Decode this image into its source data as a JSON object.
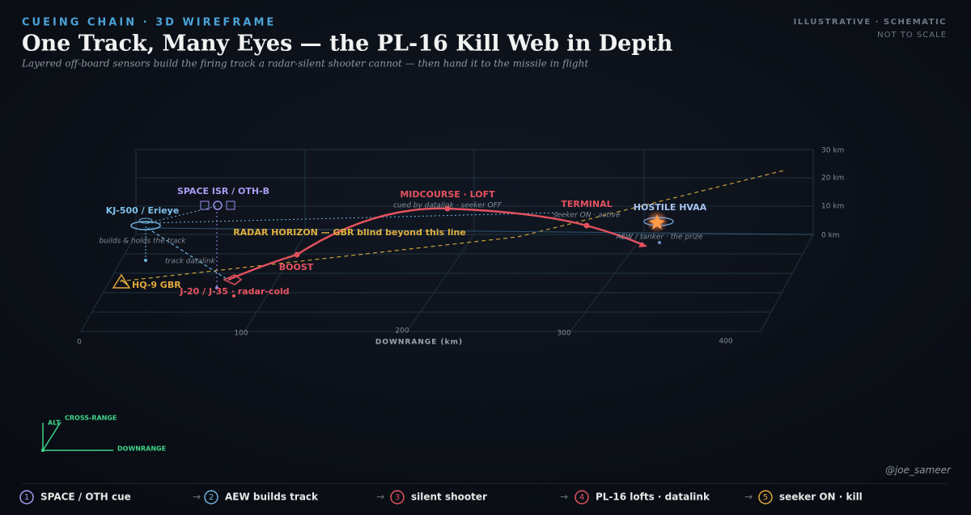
{
  "header": {
    "kicker": "CUEING CHAIN · 3D WIREFRAME",
    "title": "One Track, Many Eyes — the PL-16 Kill Web in Depth",
    "subtitle": "Layered off-board sensors build the firing track a radar-silent shooter cannot — then hand it to the missile in flight",
    "badge": "ILLUSTRATIVE · SCHEMATIC",
    "badge_note": "NOT TO SCALE"
  },
  "axes": {
    "downrange_label": "DOWNRANGE (km)",
    "downrange_ticks": [
      "0",
      "100",
      "200",
      "300",
      "400"
    ],
    "altitude_ticks": [
      "30 km",
      "20 km",
      "10 km",
      "0 km"
    ]
  },
  "nodes": {
    "space": {
      "label": "SPACE ISR / OTH-B"
    },
    "aew": {
      "label": "KJ-500 / Erieye",
      "note": "builds & holds the track",
      "link": "track datalink"
    },
    "midcourse": {
      "label": "MIDCOURSE · LOFT",
      "note": "cued by datalink · seeker OFF"
    },
    "terminal": {
      "label": "TERMINAL",
      "note": "seeker ON · active"
    },
    "target": {
      "label": "HOSTILE HVAA",
      "note": "AEW / tanker · the prize"
    },
    "horizon": {
      "label": "RADAR HORIZON — GBR blind beyond this line"
    },
    "boost": {
      "label": "BOOST"
    },
    "gbr": {
      "label": "HQ-9 GBR"
    },
    "shooter": {
      "label": "J-20 / J-35 · radar-cold"
    }
  },
  "compass": {
    "alt": "ALT",
    "cross": "CROSS-RANGE",
    "down": "DOWNRANGE"
  },
  "credit": "@joe_sameer",
  "steps": [
    {
      "number": "1",
      "label": "SPACE / OTH cue"
    },
    {
      "number": "2",
      "label": "AEW builds track"
    },
    {
      "number": "3",
      "label": "silent shooter"
    },
    {
      "number": "4",
      "label": "PL-16 lofts · datalink"
    },
    {
      "number": "5",
      "label": "seeker ON · kill"
    }
  ]
}
